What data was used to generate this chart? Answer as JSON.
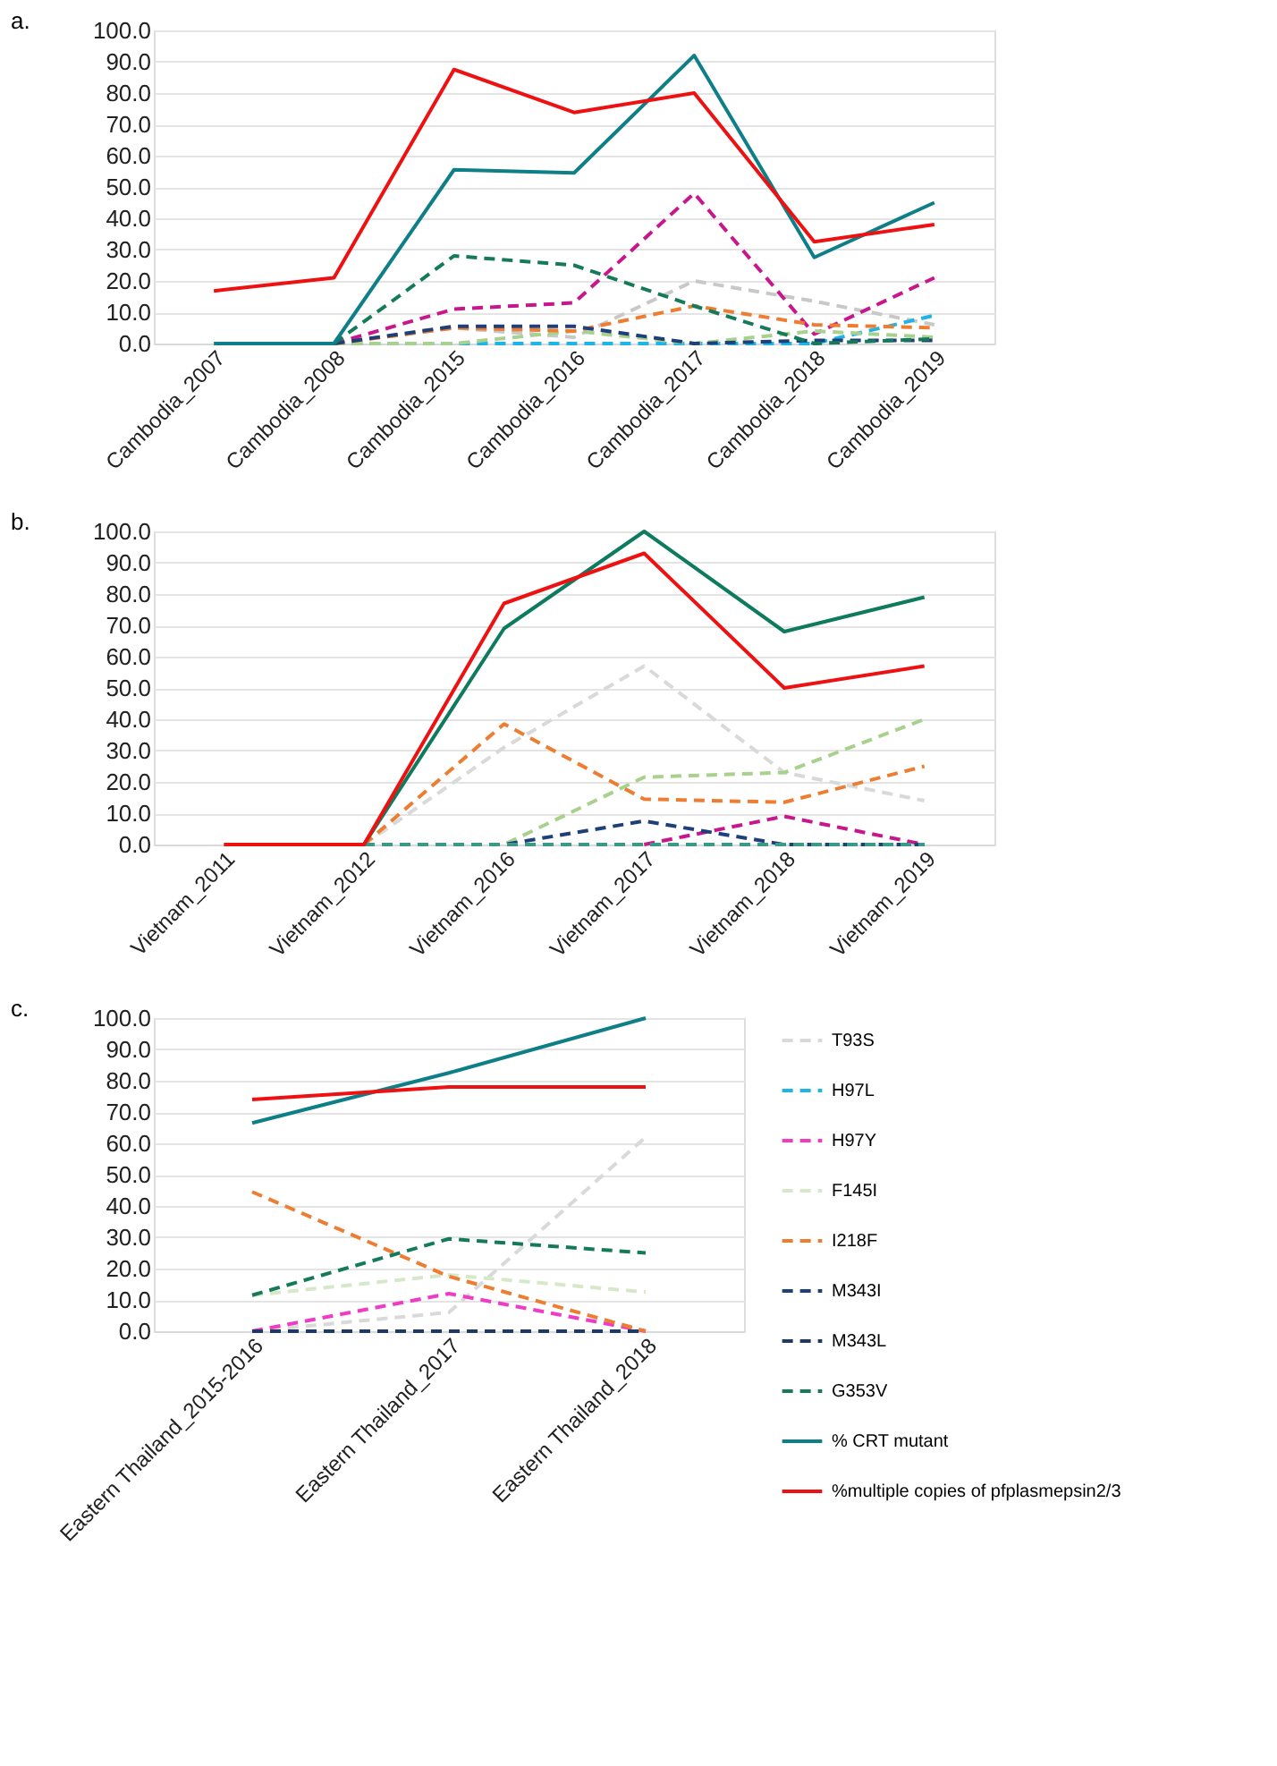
{
  "chart_data": [
    {
      "type": "line",
      "title": "a.",
      "categories": [
        "Cambodia_2007",
        "Cambodia_2008",
        "Cambodia_2015",
        "Cambodia_2016",
        "Cambodia_2017",
        "Cambodia_2018",
        "Cambodia_2019"
      ],
      "ylim": [
        0,
        100
      ],
      "yticks": [
        {
          "value": 0,
          "label": "0.0"
        },
        {
          "value": 10,
          "label": "10.0"
        },
        {
          "value": 20,
          "label": "20.0"
        },
        {
          "value": 30,
          "label": "30.0"
        },
        {
          "value": 40,
          "label": "40.0"
        },
        {
          "value": 50,
          "label": "50.0"
        },
        {
          "value": 60,
          "label": "60.0"
        },
        {
          "value": 70,
          "label": "70.0"
        },
        {
          "value": 80,
          "label": "80.0"
        },
        {
          "value": 90,
          "label": "90.0"
        },
        {
          "value": 100,
          "label": "100.0"
        }
      ],
      "grid": "y",
      "legend": false,
      "series": [
        {
          "color": "#c8c8c8",
          "line_style": "dashed",
          "values": [
            null,
            0,
            5,
            2,
            20,
            13.5,
            6
          ]
        },
        {
          "color": "#1fb4e8",
          "line_style": "dashed",
          "values": [
            null,
            0,
            0,
            0,
            0,
            0,
            9
          ]
        },
        {
          "color": "#c8168c",
          "line_style": "dashed",
          "values": [
            null,
            0,
            11,
            13,
            48,
            3,
            21
          ]
        },
        {
          "color": "#a9d18e",
          "line_style": "dashed",
          "values": [
            null,
            0,
            0,
            4,
            0,
            4,
            2
          ]
        },
        {
          "color": "#ed7d31",
          "line_style": "dashed",
          "values": [
            null,
            0,
            5,
            4,
            12,
            6,
            5
          ]
        },
        {
          "color": "#1f3f7a",
          "line_style": "dashed",
          "values": [
            null,
            0,
            5.5,
            5.5,
            0,
            1,
            1
          ]
        },
        {
          "color": "#157a5a",
          "line_style": "dashed",
          "values": [
            null,
            0,
            28,
            25,
            12,
            0,
            1.5
          ]
        },
        {
          "color": "#0f7f87",
          "line_style": "solid",
          "values": [
            0,
            0,
            55.5,
            54.5,
            92,
            27.5,
            45
          ]
        },
        {
          "color": "#ee1111",
          "line_style": "solid",
          "values": [
            16.8,
            21,
            87.5,
            73.8,
            80,
            32.5,
            38
          ]
        }
      ]
    },
    {
      "type": "line",
      "title": "b.",
      "categories": [
        "Vietnam_2011",
        "Vietnam_2012",
        "Vietnam_2016",
        "Vietnam_2017",
        "Vietnam_2018",
        "Vietnam_2019"
      ],
      "ylim": [
        0,
        100
      ],
      "yticks": [
        {
          "value": 0,
          "label": "0.0"
        },
        {
          "value": 10,
          "label": "10.0"
        },
        {
          "value": 20,
          "label": "20.0"
        },
        {
          "value": 30,
          "label": "30.0"
        },
        {
          "value": 40,
          "label": "40.0"
        },
        {
          "value": 50,
          "label": "50.0"
        },
        {
          "value": 60,
          "label": "60.0"
        },
        {
          "value": 70,
          "label": "70.0"
        },
        {
          "value": 80,
          "label": "80.0"
        },
        {
          "value": 90,
          "label": "90.0"
        },
        {
          "value": 100,
          "label": "100.0"
        }
      ],
      "grid": "y",
      "legend": false,
      "series": [
        {
          "color": "#d9d9d9",
          "line_style": "dashed",
          "values": [
            null,
            0,
            31,
            57,
            23,
            14
          ]
        },
        {
          "color": "#c8168c",
          "line_style": "dashed",
          "values": [
            null,
            null,
            null,
            0,
            9,
            0
          ]
        },
        {
          "color": "#a9d18e",
          "line_style": "dashed",
          "values": [
            null,
            0,
            0,
            21.5,
            23,
            40
          ]
        },
        {
          "color": "#ed7d31",
          "line_style": "dashed",
          "values": [
            null,
            0,
            38.5,
            14.5,
            13.5,
            25
          ]
        },
        {
          "color": "#1f3f7a",
          "line_style": "dashed",
          "values": [
            null,
            0,
            0,
            7.5,
            0,
            0
          ]
        },
        {
          "color": "#3a9a8a",
          "line_style": "dashed",
          "values": [
            null,
            0,
            0,
            0,
            0,
            0
          ]
        },
        {
          "color": "#0e7a5e",
          "line_style": "solid",
          "values": [
            null,
            0,
            69,
            100,
            68,
            79
          ]
        },
        {
          "color": "#ee1111",
          "line_style": "solid",
          "values": [
            0,
            0,
            77,
            93,
            50,
            57
          ]
        }
      ]
    },
    {
      "type": "line",
      "title": "c.",
      "categories": [
        "Eastern Thailand_2015-2016",
        "Eastern Thailand_2017",
        "Eastern Thailand_2018"
      ],
      "ylim": [
        0,
        100
      ],
      "yticks": [
        {
          "value": 0,
          "label": "0.0"
        },
        {
          "value": 10,
          "label": "10.0"
        },
        {
          "value": 20,
          "label": "20.0"
        },
        {
          "value": 30,
          "label": "30.0"
        },
        {
          "value": 40,
          "label": "40.0"
        },
        {
          "value": 50,
          "label": "50.0"
        },
        {
          "value": 60,
          "label": "60.0"
        },
        {
          "value": 70,
          "label": "70.0"
        },
        {
          "value": 80,
          "label": "80.0"
        },
        {
          "value": 90,
          "label": "90.0"
        },
        {
          "value": 100,
          "label": "100.0"
        }
      ],
      "grid": "y",
      "legend": "right",
      "series": [
        {
          "name": "T93S",
          "color": "#d9d9d9",
          "line_style": "dashed",
          "values": [
            0,
            6,
            62
          ]
        },
        {
          "name": "H97L",
          "color": "#1fb4e8",
          "line_style": "dashed",
          "values": [
            null,
            null,
            null
          ]
        },
        {
          "name": "H97Y",
          "color": "#f03cc4",
          "line_style": "dashed",
          "values": [
            0,
            12,
            0
          ]
        },
        {
          "name": "F145I",
          "color": "#d5e8c8",
          "line_style": "dashed",
          "values": [
            11.5,
            18,
            12.5
          ]
        },
        {
          "name": "I218F",
          "color": "#ed7d31",
          "line_style": "dashed",
          "values": [
            44.5,
            17.5,
            0
          ]
        },
        {
          "name": "M343I",
          "color": "#1f3f7a",
          "line_style": "dashed",
          "values": [
            null,
            null,
            null
          ]
        },
        {
          "name": "M343L",
          "color": "#203864",
          "line_style": "dashed",
          "values": [
            0,
            0,
            0
          ]
        },
        {
          "name": "G353V",
          "color": "#157a5a",
          "line_style": "dashed",
          "values": [
            11.5,
            29.5,
            25
          ]
        },
        {
          "name": "% CRT mutant",
          "color": "#0f7f87",
          "line_style": "solid",
          "values": [
            66.5,
            82.5,
            100
          ]
        },
        {
          "name": "%multiple copies of pfplasmepsin2/3",
          "color": "#ee1111",
          "line_style": "solid",
          "values": [
            74,
            78,
            78
          ]
        }
      ]
    }
  ]
}
